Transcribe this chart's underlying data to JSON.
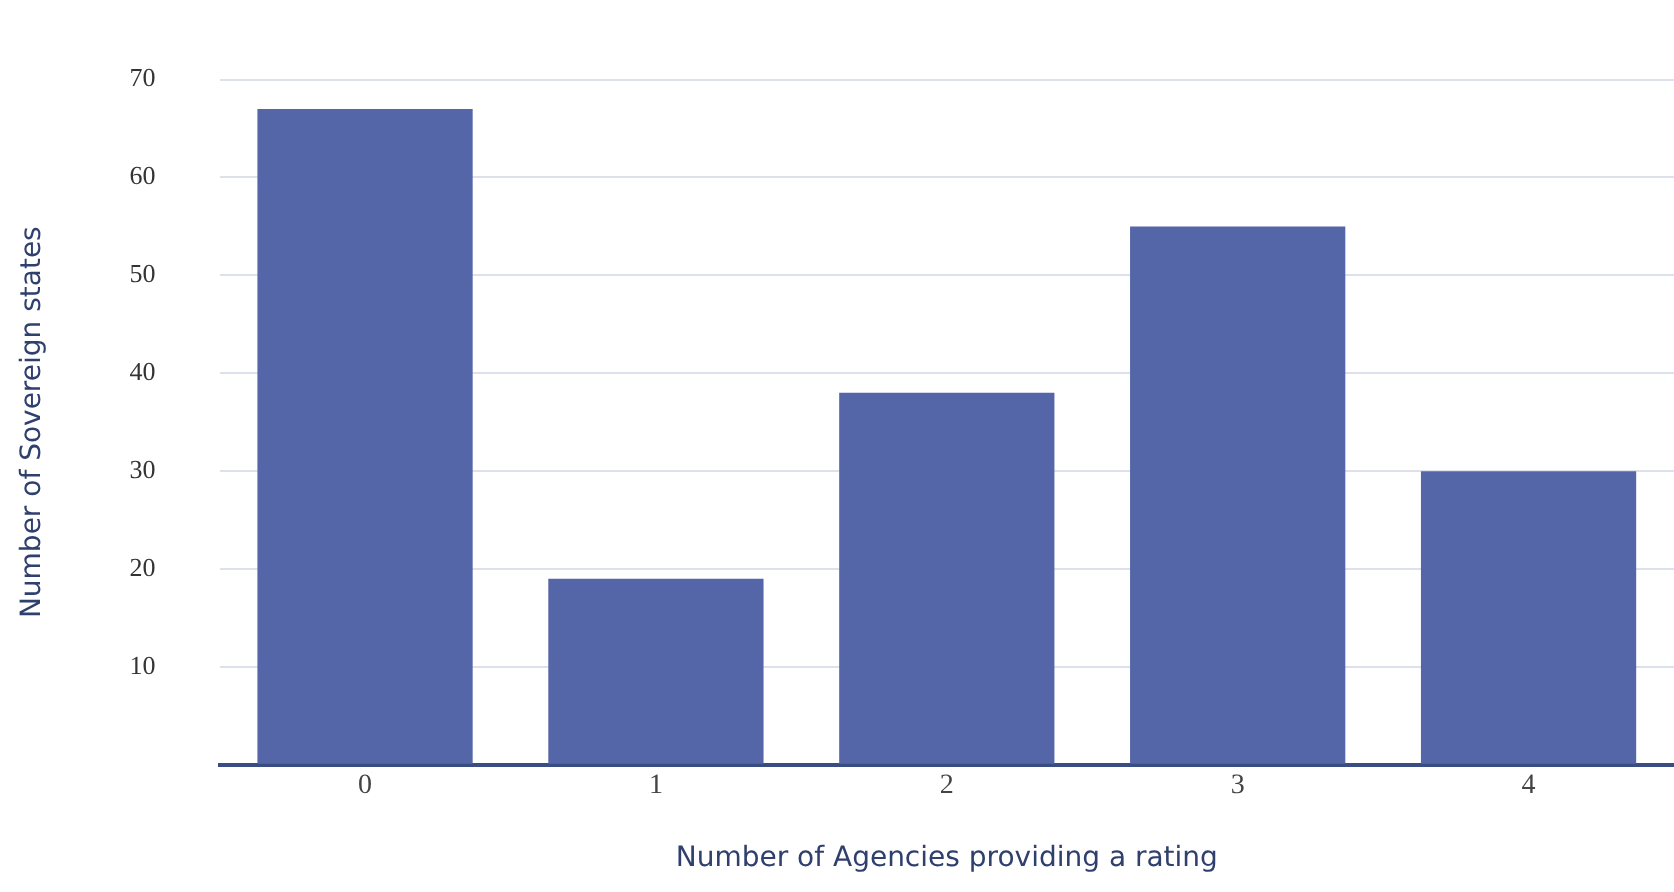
{
  "chart_data": {
    "type": "bar",
    "xlabel": "Number of Agencies providing a rating",
    "ylabel": "Number of Sovereign states",
    "categories": [
      "0",
      "1",
      "2",
      "3",
      "4"
    ],
    "values": [
      67,
      19,
      38,
      55,
      30
    ],
    "color": "#5466a8",
    "ylim": [
      0,
      70
    ],
    "yticks": [
      {
        "value": 0,
        "label": null
      },
      10,
      20,
      30,
      40,
      50,
      60,
      70
    ],
    "grid": "y",
    "legend": false
  }
}
